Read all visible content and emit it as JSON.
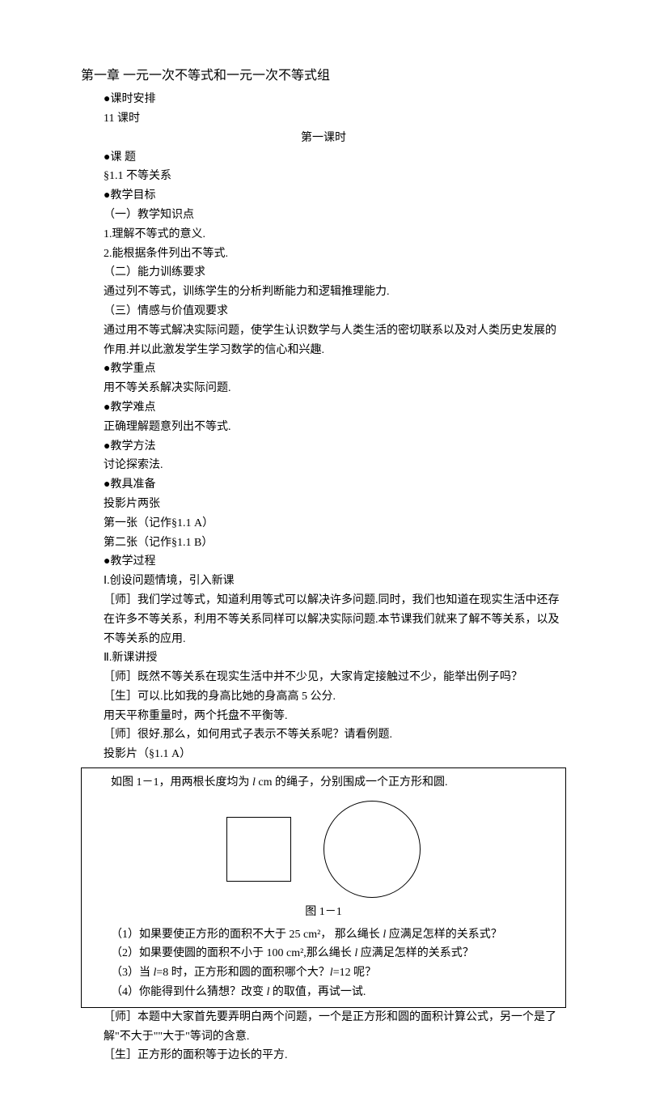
{
  "title": "第一章  一元一次不等式和一元一次不等式组",
  "section": {
    "schedule_label": "●课时安排",
    "schedule_value": "11 课时",
    "lesson_heading": "第一课时",
    "topic_label": "●课  题",
    "topic_value": "§1.1  不等关系",
    "goal_label": "●教学目标",
    "goal_1_label": "（一）教学知识点",
    "goal_1_1": "1.理解不等式的意义.",
    "goal_1_2": "2.能根据条件列出不等式.",
    "goal_2_label": "（二）能力训练要求",
    "goal_2_text": "通过列不等式，训练学生的分析判断能力和逻辑推理能力.",
    "goal_3_label": "（三）情感与价值观要求",
    "goal_3_text": "通过用不等式解决实际问题，使学生认识数学与人类生活的密切联系以及对人类历史发展的作用.并以此激发学生学习数学的信心和兴趣.",
    "focus_label": "●教学重点",
    "focus_text": "用不等关系解决实际问题.",
    "difficulty_label": "●教学难点",
    "difficulty_text": "正确理解题意列出不等式.",
    "method_label": "●教学方法",
    "method_text": "讨论探索法.",
    "tools_label": "●教具准备",
    "tools_text": "投影片两张",
    "tools_1": "第一张（记作§1.1 A）",
    "tools_2": "第二张（记作§1.1 B）",
    "process_label": "●教学过程",
    "process_1_label": "Ⅰ.创设问题情境，引入新课",
    "t1": "［师］我们学过等式，知道利用等式可以解决许多问题.同时，我们也知道在现实生活中还存在许多不等关系，利用不等关系同样可以解决实际问题.本节课我们就来了解不等关系，以及不等关系的应用.",
    "process_2_label": "Ⅱ.新课讲授",
    "t2": "［师］既然不等关系在现实生活中并不少见，大家肯定接触过不少，能举出例子吗？",
    "s1": "［生］可以.比如我的身高比她的身高高 5 公分.",
    "s1b": "用天平称重量时，两个托盘不平衡等.",
    "t3": "［师］很好.那么，如何用式子表示不等关系呢？请看例题.",
    "slide_ref": "投影片（§1.1 A）"
  },
  "box": {
    "intro_a": "如图 1－1，用两根长度均为 ",
    "intro_b": " cm 的绳子，分别围成一个正方形和圆.",
    "fig_label": "图 1－1",
    "q1_a": "（1）如果要使正方形的面积不大于 25 cm²，  那么绳长 ",
    "q1_b": " 应满足怎样的关系式？",
    "q2_a": "（2）如果要使圆的面积不小于 100 cm²,那么绳长 ",
    "q2_b": " 应满足怎样的关系式？",
    "q3_a": "（3）当 ",
    "q3_b": "=8 时，正方形和圆的面积哪个大？",
    "q3_c": "=12 呢？",
    "q4_a": "（4）你能得到什么猜想？改变 ",
    "q4_b": " 的取值，再试一试.",
    "l_var": "l"
  },
  "after": {
    "t4": "［师］本题中大家首先要弄明白两个问题，一个是正方形和圆的面积计算公式，另一个是了解\"不大于\"\"大于\"等词的含意.",
    "s2": "［生］正方形的面积等于边长的平方."
  }
}
